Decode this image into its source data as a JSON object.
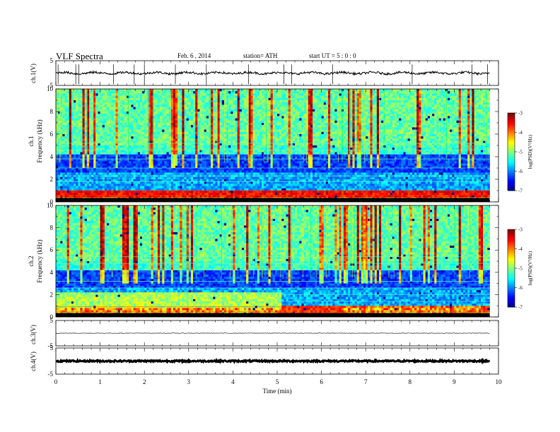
{
  "header": {
    "title": "VLF  Spectra",
    "date": "Feb. 6  , 2014",
    "station": "station= ATH",
    "start": "start  UT  =   5  : 0  : 0"
  },
  "chart_data": [
    {
      "type": "line",
      "name": "ch1-waveform",
      "ylabel": "ch.1(V)",
      "ylim": [
        -5,
        5
      ],
      "yticks": [
        "5",
        "-5"
      ],
      "xlim": [
        0,
        10
      ],
      "baseline": 0,
      "spikes_min": [
        0.05,
        0.45,
        0.52,
        1.3,
        1.77,
        2.0,
        2.7,
        3.4,
        4.35,
        5.15,
        5.33,
        6.25,
        8.05,
        9.4,
        9.75
      ]
    },
    {
      "type": "heatmap",
      "name": "ch1-spectrogram",
      "ylabel": "ch.1\nFrequency  (kHz)",
      "xlim": [
        0,
        9.8
      ],
      "ylim": [
        0,
        10
      ],
      "yticks": [
        "0",
        "2",
        "4",
        "6",
        "8",
        "10"
      ],
      "colorbar": {
        "label": "log(PSD)(V²/Hz)",
        "range": [
          -7,
          -3
        ],
        "ticks": [
          "-3",
          "-4",
          "-5",
          "-6",
          "-7"
        ]
      }
    },
    {
      "type": "heatmap",
      "name": "ch2-spectrogram",
      "ylabel": "ch.2\nFrequency  (kHz)",
      "xlim": [
        0,
        9.8
      ],
      "ylim": [
        0,
        10
      ],
      "yticks": [
        "0",
        "2",
        "4",
        "6",
        "8",
        "10"
      ],
      "colorbar": {
        "label": "log(PSD)(V²/Hz)",
        "range": [
          -7,
          -3
        ],
        "ticks": [
          "-3",
          "-4",
          "-5",
          "-6",
          "-7"
        ]
      }
    },
    {
      "type": "line",
      "name": "ch3-waveform",
      "ylabel": "ch.3(V)",
      "ylim": [
        -5,
        5
      ],
      "yticks": [
        "5",
        "-5"
      ],
      "baseline": 0
    },
    {
      "type": "line",
      "name": "ch4-waveform",
      "ylabel": "ch.4(V)",
      "ylim": [
        -5,
        5
      ],
      "yticks": [
        "5",
        "-5"
      ],
      "baseline": 0
    }
  ],
  "xaxis": {
    "label": "Time  (min)",
    "ticks": [
      "0",
      "1",
      "2",
      "3",
      "4",
      "5",
      "6",
      "7",
      "8",
      "9",
      "10"
    ]
  },
  "colors": {
    "jet_low": "#00007f",
    "jet_mid": "#00ff80",
    "jet_high": "#ff0000"
  }
}
